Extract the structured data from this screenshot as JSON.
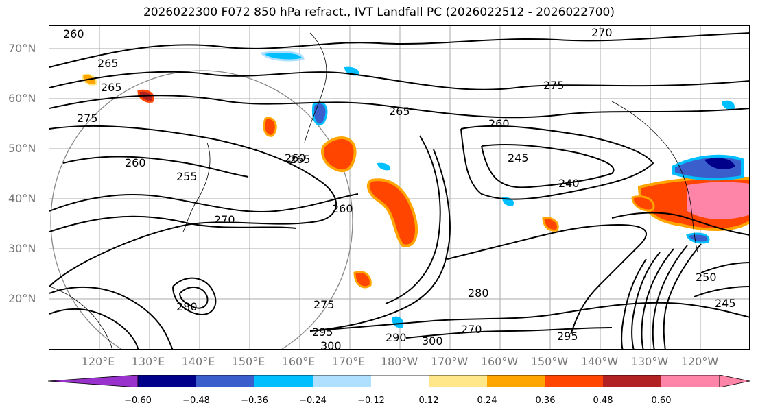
{
  "title": "2026022300 F072 850 hPa refract., IVT Landfall PC (2026022512 - 2026022700)",
  "lat_labels": [
    "70°N",
    "60°N",
    "50°N",
    "40°N",
    "30°N",
    "20°N"
  ],
  "lon_labels": [
    "120°E",
    "130°E",
    "140°E",
    "150°E",
    "160°E",
    "170°E",
    "180°W",
    "170°W",
    "160°W",
    "150°W",
    "140°W",
    "130°W",
    "120°W"
  ],
  "colorbar": {
    "ticks": [
      "−0.60",
      "−0.48",
      "−0.36",
      "−0.24",
      "−0.12",
      "0.12",
      "0.24",
      "0.36",
      "0.48",
      "0.60"
    ],
    "colors": [
      "#9932cc",
      "#00008b",
      "#3a5fcd",
      "#00bfff",
      "#b0e0ff",
      "#ffffff",
      "#ffe78a",
      "#ffa500",
      "#ff4500",
      "#b22222",
      "#ff85a8",
      "#ff85a8"
    ]
  },
  "contour_labels": [
    "260",
    "265",
    "270",
    "275",
    "260",
    "255",
    "245",
    "240",
    "265",
    "280",
    "295",
    "300",
    "275",
    "250",
    "245",
    "270",
    "260",
    "260",
    "265",
    "280",
    "300",
    "295",
    "290",
    "260",
    "270",
    "265",
    "275"
  ],
  "colors": {
    "axis_label": "#777777",
    "contour": "#000000",
    "grid": "#999999"
  }
}
